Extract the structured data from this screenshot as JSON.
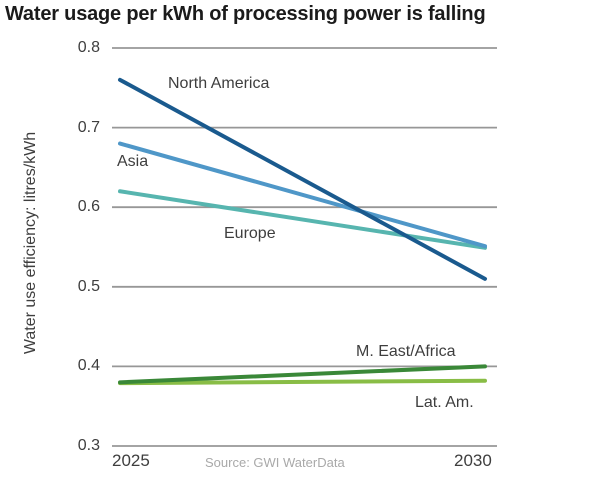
{
  "title": "Water usage per kWh of processing power is falling",
  "y_axis_label": "Water use efficiency: litres/kWh",
  "source": "Source: GWI WaterData",
  "colors": {
    "grid": "#979797",
    "title_text": "#1b1b1b",
    "tick_text": "#3e3e3e",
    "source_text": "#a9a9a9"
  },
  "chart_data": {
    "type": "line",
    "title": "Water usage per kWh of processing power is falling",
    "xlabel": "",
    "ylabel": "Water use efficiency: litres/kWh",
    "x": [
      2025,
      2030
    ],
    "x_tick_labels": [
      "2025",
      "2030"
    ],
    "yticks": [
      0.8,
      0.7,
      0.6,
      0.5,
      0.4,
      0.3
    ],
    "ylim": [
      0.3,
      0.8
    ],
    "grid": "horizontal-only",
    "legend": "inline-labels-next-to-lines",
    "source": "Source: GWI WaterData",
    "series": [
      {
        "name": "North America",
        "color": "#1a5a8e",
        "values": [
          0.76,
          0.51
        ]
      },
      {
        "name": "Asia",
        "color": "#4f97c8",
        "values": [
          0.68,
          0.551
        ]
      },
      {
        "name": "Europe",
        "color": "#57b5af",
        "values": [
          0.62,
          0.549
        ]
      },
      {
        "name": "M. East/Africa",
        "color": "#3a8838",
        "values": [
          0.38,
          0.4
        ]
      },
      {
        "name": "Lat. Am.",
        "color": "#89bd46",
        "values": [
          0.379,
          0.382
        ]
      }
    ]
  }
}
